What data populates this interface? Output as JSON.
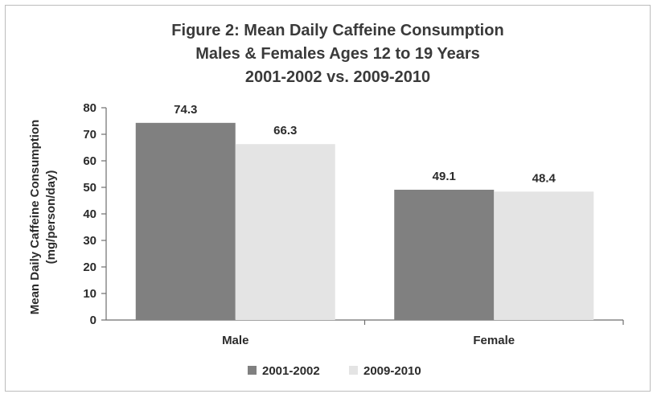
{
  "chart_data": {
    "type": "bar",
    "title_lines": [
      "Figure 2: Mean Daily Caffeine Consumption",
      "Males & Females Ages 12 to 19 Years",
      "2001-2002 vs. 2009-2010"
    ],
    "ylabel_lines": [
      "Mean Daily Caffeine Consumption",
      "(mg/person/day)"
    ],
    "xlabel": "",
    "categories": [
      "Male",
      "Female"
    ],
    "series": [
      {
        "name": "2001-2002",
        "values": [
          74.3,
          49.1
        ],
        "color": "#808080"
      },
      {
        "name": "2009-2010",
        "values": [
          66.3,
          48.4
        ],
        "color": "#e4e4e4"
      }
    ],
    "ylim": [
      0,
      80
    ],
    "yticks": [
      "0",
      "10",
      "20",
      "30",
      "40",
      "50",
      "60",
      "70",
      "80"
    ],
    "data_labels": [
      [
        "74.3",
        "49.1"
      ],
      [
        "66.3",
        "48.4"
      ]
    ],
    "grid": false,
    "legend_position": "bottom"
  }
}
